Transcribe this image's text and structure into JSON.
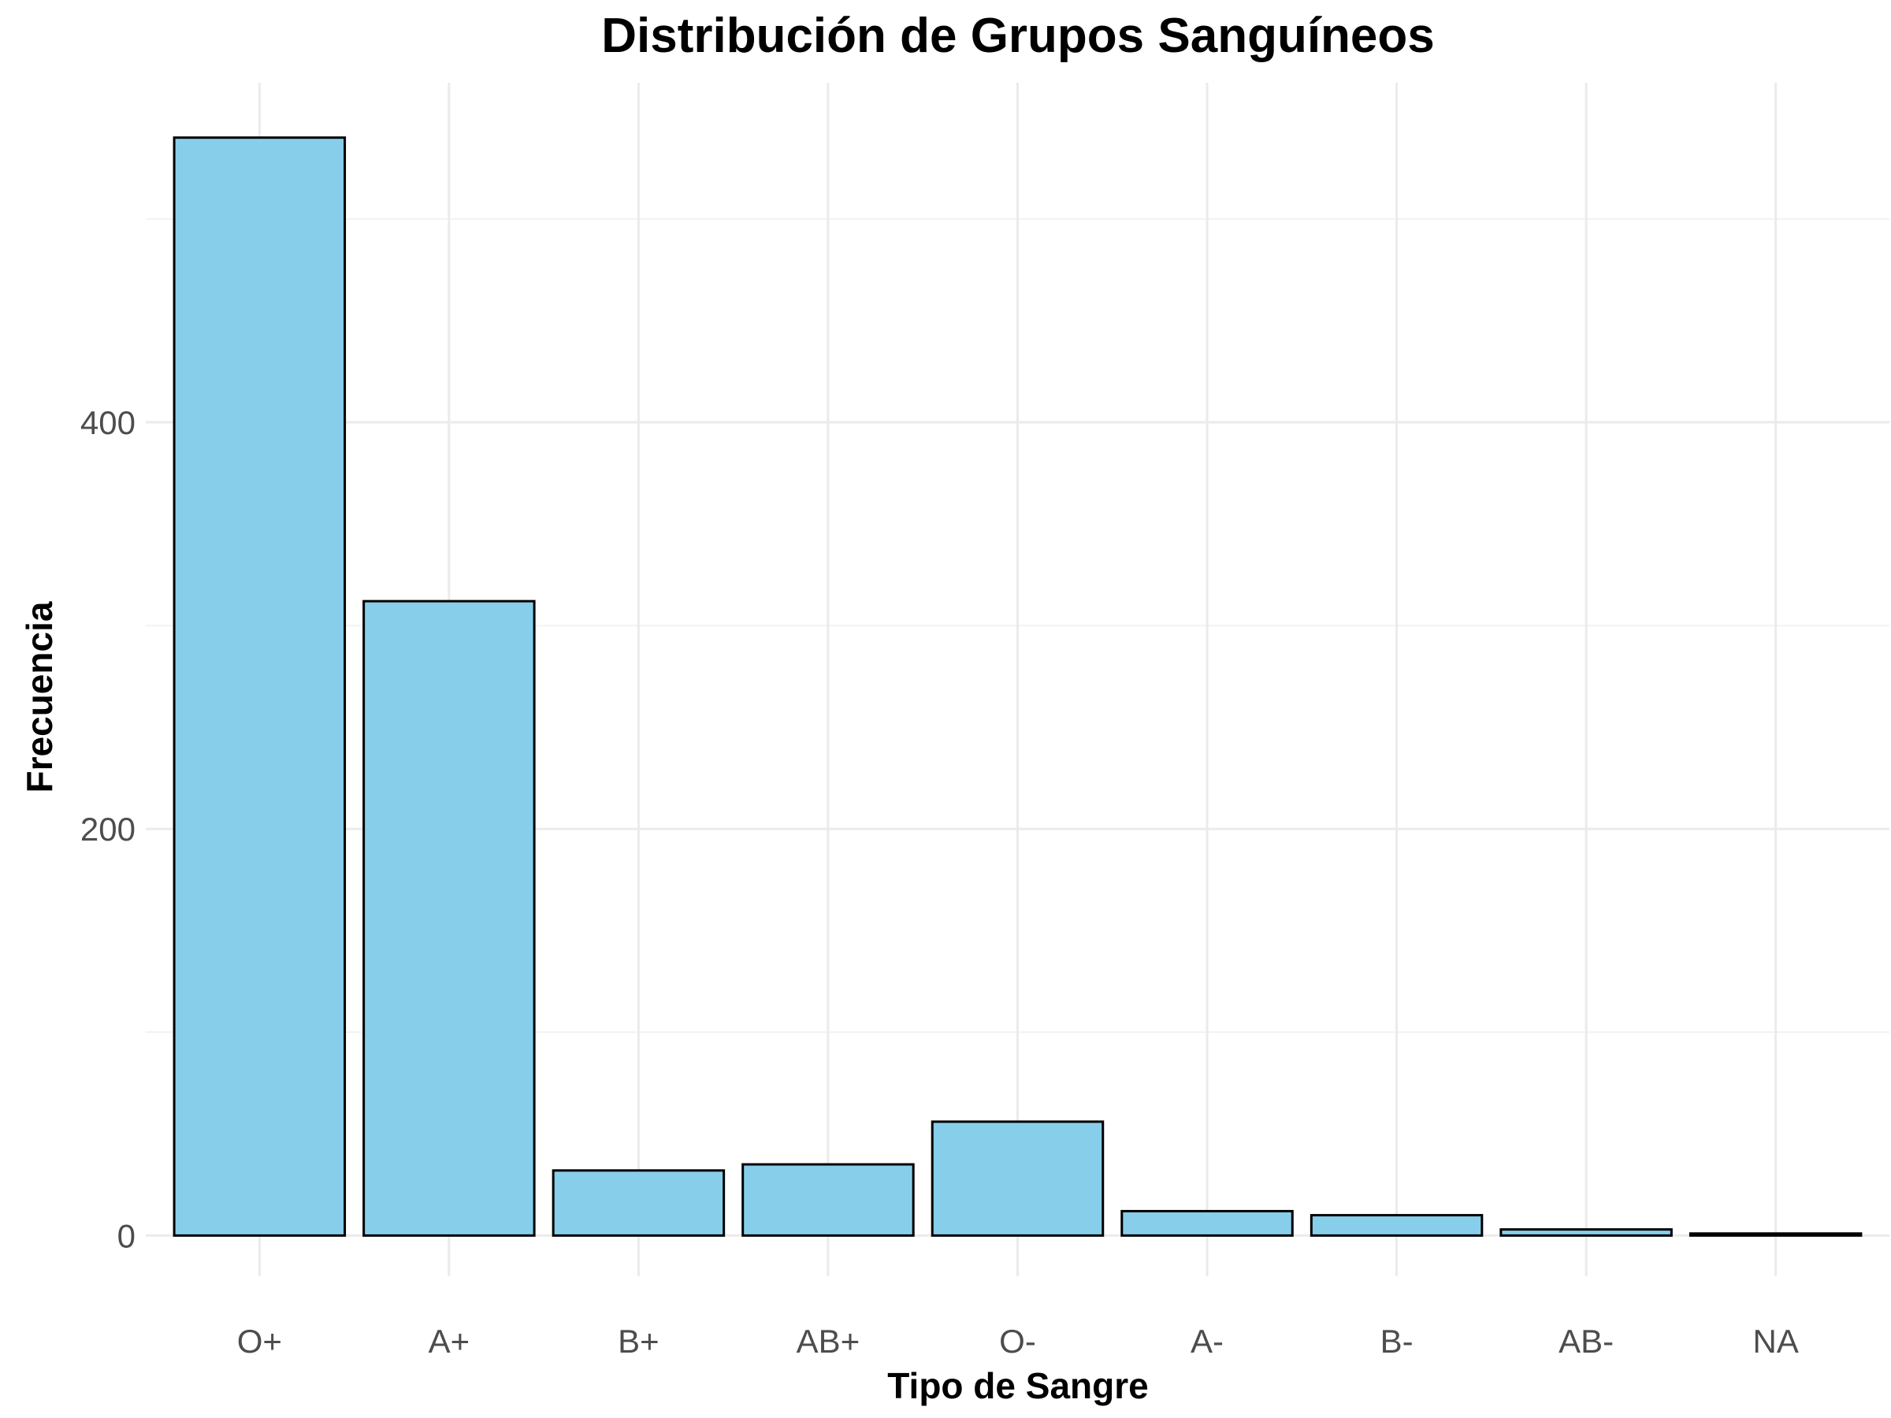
{
  "chart_data": {
    "type": "bar",
    "title": "Distribución de Grupos Sanguíneos",
    "xlabel": "Tipo de Sangre",
    "ylabel": "Frecuencia",
    "categories": [
      "O+",
      "A+",
      "B+",
      "AB+",
      "O-",
      "A-",
      "B-",
      "AB-",
      "NA"
    ],
    "values": [
      540,
      312,
      32,
      35,
      56,
      12,
      10,
      3,
      1
    ],
    "ylim": [
      -20,
      567
    ],
    "yticks": [
      0,
      200,
      400
    ],
    "y_minor_ticks": [
      100,
      300,
      500
    ],
    "tick_labels_y": [
      "0",
      "200",
      "400"
    ],
    "grid": true,
    "colors": {
      "bar_fill": "#87ceeb",
      "bar_outline": "#000000"
    }
  }
}
